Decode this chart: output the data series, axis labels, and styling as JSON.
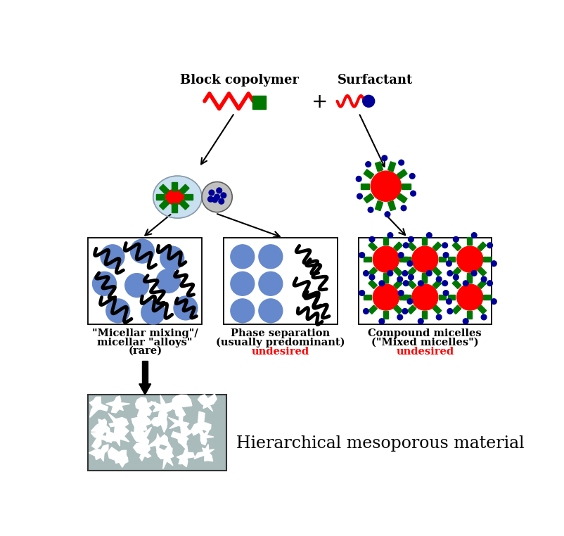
{
  "bg_color": "#ffffff",
  "fig_width": 8.02,
  "fig_height": 7.62,
  "labels": {
    "block_copolymer": "Block copolymer",
    "surfactant": "Surfactant",
    "micellar_mixing_1": "\"Micellar mixing\"/",
    "micellar_mixing_2": "micellar \"alloys\"",
    "micellar_mixing_3": "(rare)",
    "phase_sep_1": "Phase separation",
    "phase_sep_2": "(usually predominant)",
    "phase_sep_3": "undesired",
    "compound_1": "Compound micelles",
    "compound_2": "(\"Mixed micelles\")",
    "compound_3": "undesired",
    "hierarchical": "Hierarchical mesoporous material"
  },
  "colors": {
    "red": "#ff0000",
    "green": "#007700",
    "blue": "#5588cc",
    "dark_blue": "#000099",
    "black": "#000000",
    "white": "#ffffff",
    "light_blue": "#c8e0f0",
    "silver": "#c0c0c0",
    "dark_gray": "#606060",
    "box_gray": "#aabbbb"
  }
}
